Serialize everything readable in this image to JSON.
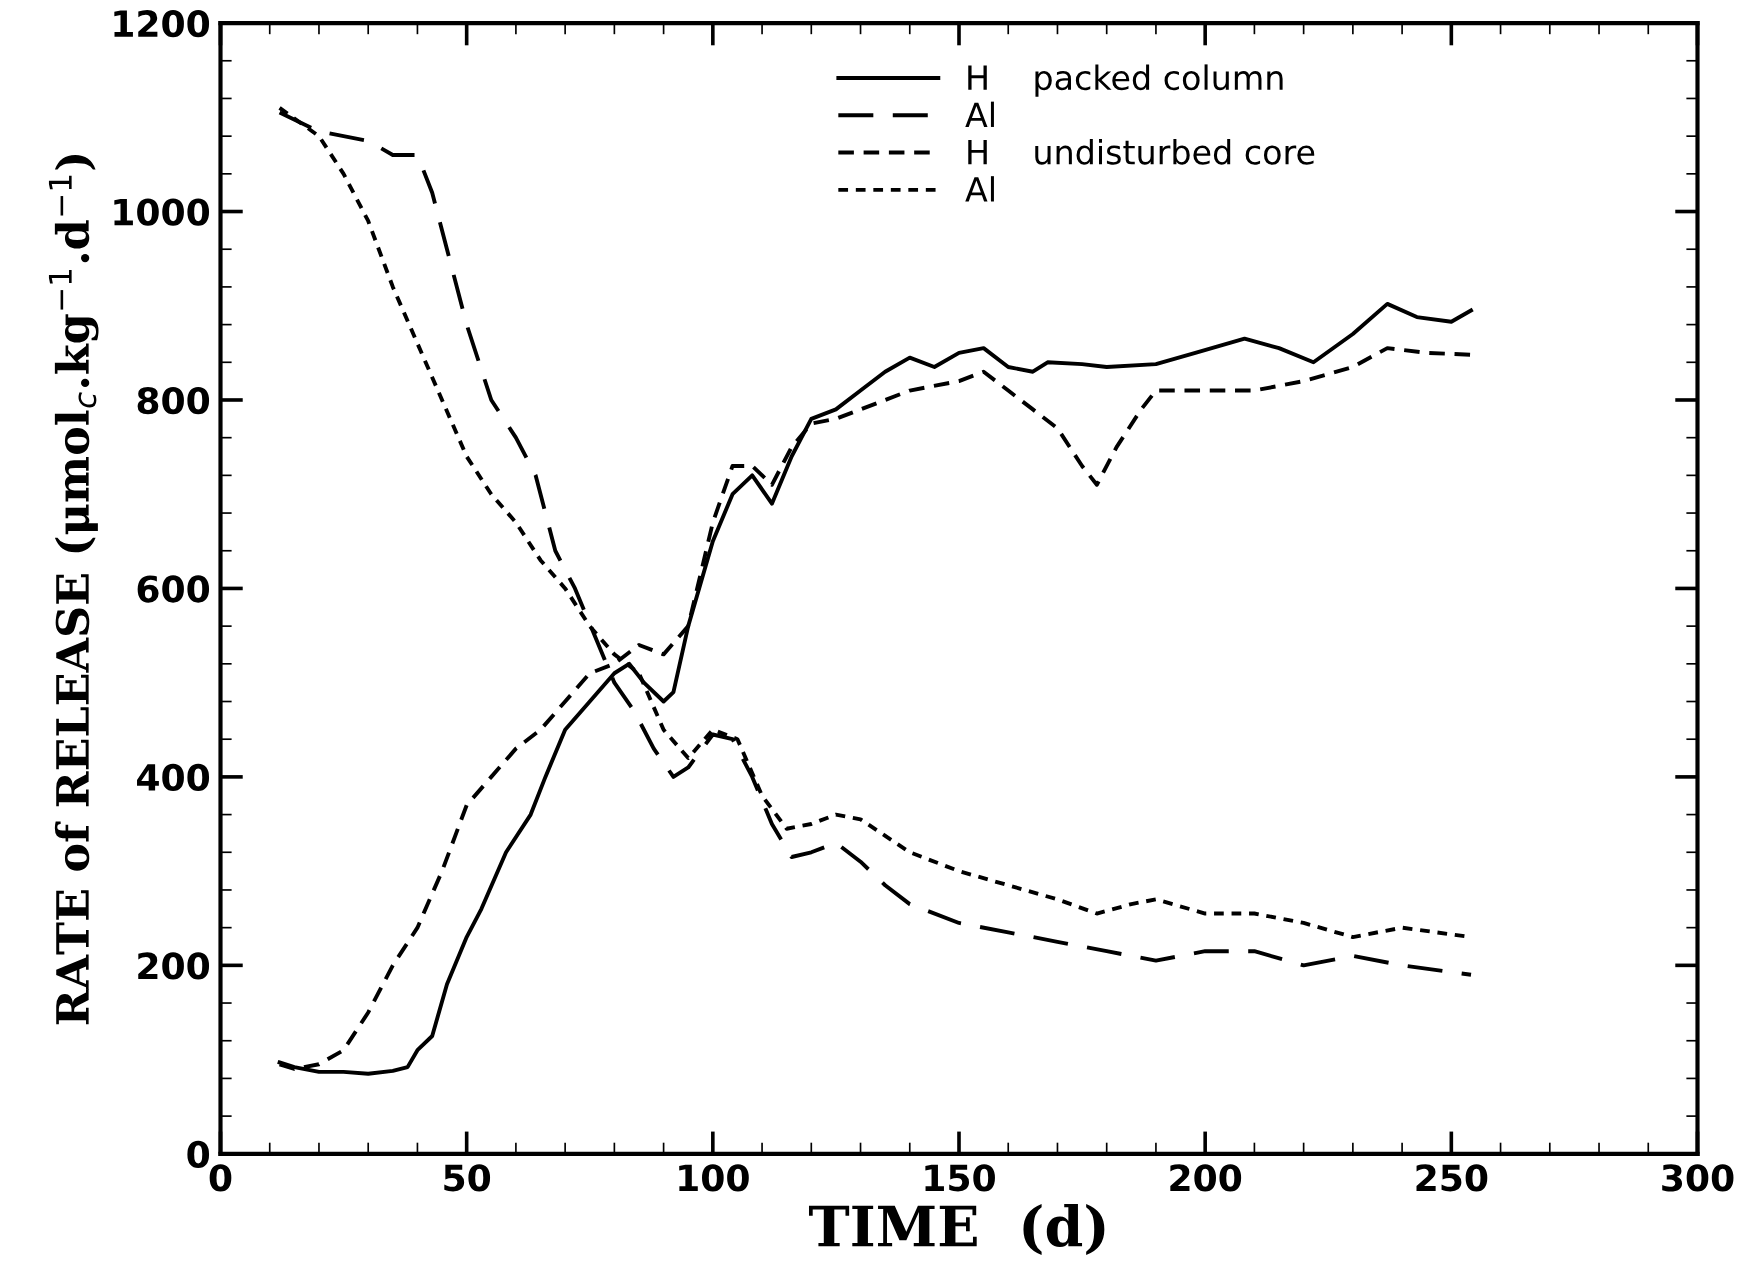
{
  "chart_data": {
    "type": "line",
    "xlabel": "TIME  (d)",
    "ylabel": "RATE of RELEASE (μmol$_{c}$.kg$^{−1}$.d$^{−1}$)",
    "xlim": [
      0,
      300
    ],
    "xticks": [
      0,
      50,
      100,
      150,
      200,
      250,
      300
    ],
    "ylim": [
      0,
      1200
    ],
    "yticks": [
      0,
      200,
      400,
      600,
      800,
      1000,
      1200
    ],
    "grid": false,
    "legend": "top",
    "marker": "none",
    "series": [
      {
        "name": "H    packed column",
        "color": "#000000",
        "line_style": "solid",
        "x": [
          12,
          15,
          20,
          25,
          30,
          35,
          38,
          40,
          43,
          46,
          50,
          53,
          58,
          63,
          66,
          70,
          75,
          80,
          83,
          86,
          90,
          92,
          95,
          100,
          104,
          108,
          112,
          116,
          120,
          125,
          130,
          135,
          140,
          145,
          150,
          155,
          160,
          165,
          168,
          175,
          180,
          190,
          198,
          208,
          215,
          222,
          230,
          237,
          243,
          250,
          254
        ],
        "values": [
          97,
          92,
          87,
          87,
          85,
          88,
          92,
          110,
          125,
          180,
          230,
          260,
          320,
          360,
          400,
          450,
          480,
          510,
          520,
          500,
          480,
          490,
          560,
          650,
          700,
          720,
          690,
          740,
          780,
          790,
          810,
          830,
          845,
          835,
          850,
          855,
          835,
          830,
          840,
          838,
          835,
          838,
          850,
          865,
          855,
          840,
          870,
          902,
          888,
          883,
          895
        ]
      },
      {
        "name": "Al",
        "color": "#000000",
        "line_style": "dashed",
        "x": [
          12,
          20,
          30,
          35,
          40,
          43,
          46,
          50,
          55,
          60,
          64,
          68,
          72,
          76,
          80,
          84,
          88,
          92,
          95,
          100,
          104,
          108,
          112,
          116,
          120,
          125,
          130,
          135,
          140,
          150,
          160,
          170,
          180,
          190,
          200,
          210,
          220,
          230,
          240,
          254
        ],
        "values": [
          1105,
          1085,
          1075,
          1060,
          1060,
          1020,
          960,
          880,
          800,
          760,
          720,
          640,
          600,
          550,
          500,
          470,
          430,
          400,
          410,
          445,
          440,
          400,
          350,
          315,
          320,
          330,
          310,
          285,
          265,
          245,
          235,
          225,
          215,
          205,
          215,
          215,
          200,
          210,
          200,
          190
        ]
      },
      {
        "name": "H    undisturbed core",
        "color": "#000000",
        "line_style": "dashed",
        "x": [
          12,
          15,
          20,
          25,
          30,
          35,
          40,
          45,
          50,
          55,
          60,
          65,
          70,
          75,
          80,
          85,
          90,
          95,
          100,
          104,
          108,
          112,
          116,
          120,
          125,
          130,
          140,
          150,
          155,
          160,
          165,
          170,
          175,
          178,
          182,
          187,
          190,
          200,
          210,
          220,
          230,
          237,
          245,
          254
        ],
        "values": [
          95,
          90,
          95,
          110,
          150,
          200,
          240,
          300,
          370,
          400,
          430,
          450,
          480,
          510,
          520,
          540,
          530,
          560,
          670,
          730,
          730,
          710,
          750,
          775,
          780,
          790,
          810,
          820,
          830,
          810,
          790,
          770,
          730,
          710,
          750,
          790,
          810,
          810,
          810,
          820,
          835,
          855,
          850,
          848
        ]
      },
      {
        "name": "Al",
        "color": "#000000",
        "line_style": "dotted",
        "x": [
          12,
          20,
          25,
          30,
          35,
          40,
          45,
          50,
          55,
          60,
          65,
          70,
          75,
          80,
          85,
          90,
          95,
          100,
          105,
          110,
          115,
          120,
          125,
          130,
          140,
          150,
          160,
          170,
          178,
          185,
          190,
          200,
          210,
          220,
          230,
          240,
          254
        ],
        "values": [
          1110,
          1080,
          1040,
          990,
          920,
          860,
          800,
          740,
          700,
          670,
          630,
          600,
          560,
          530,
          510,
          450,
          420,
          450,
          440,
          380,
          345,
          350,
          360,
          355,
          320,
          300,
          285,
          270,
          255,
          265,
          270,
          255,
          255,
          245,
          230,
          240,
          230
        ]
      }
    ]
  }
}
